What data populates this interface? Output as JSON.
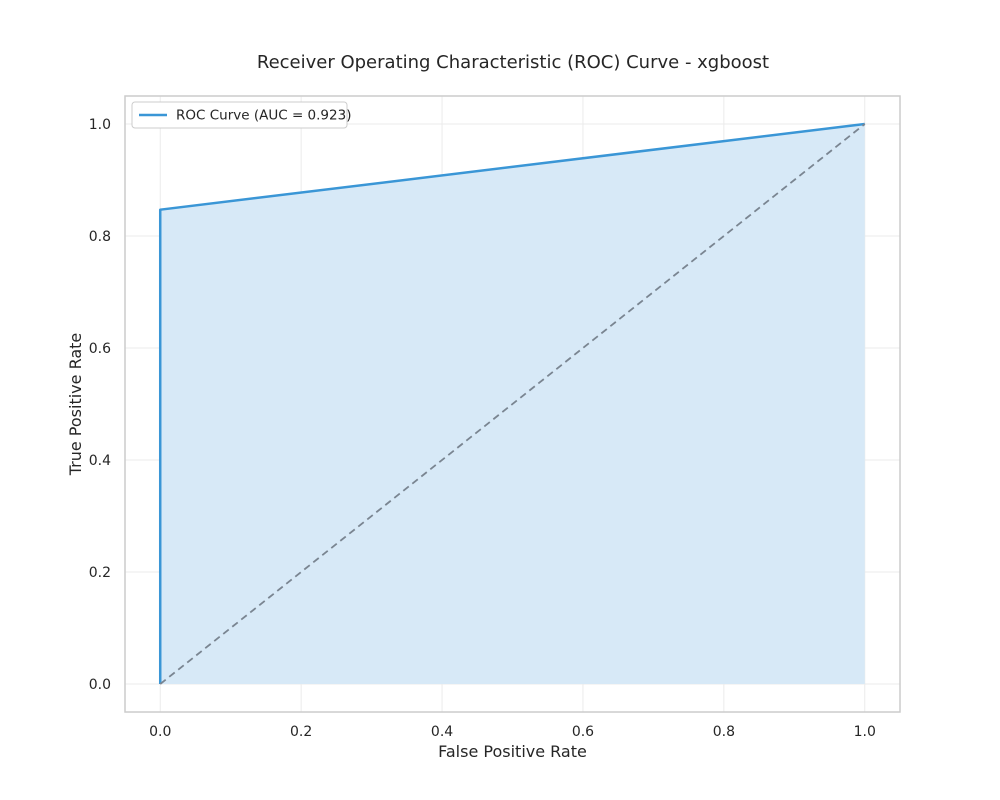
{
  "chart_data": {
    "type": "line",
    "title": "Receiver Operating Characteristic (ROC) Curve - xgboost",
    "xlabel": "False Positive Rate",
    "ylabel": "True Positive Rate",
    "xlim": [
      -0.05,
      1.05
    ],
    "ylim": [
      -0.05,
      1.05
    ],
    "xticks": [
      0.0,
      0.2,
      0.4,
      0.6,
      0.8,
      1.0
    ],
    "yticks": [
      0.0,
      0.2,
      0.4,
      0.6,
      0.8,
      1.0
    ],
    "xtick_labels": [
      "0.0",
      "0.2",
      "0.4",
      "0.6",
      "0.8",
      "1.0"
    ],
    "ytick_labels": [
      "0.0",
      "0.2",
      "0.4",
      "0.6",
      "0.8",
      "1.0"
    ],
    "grid": true,
    "legend_position": "top-left",
    "series": [
      {
        "name": "ROC Curve (AUC = 0.923)",
        "x": [
          0.0,
          0.0,
          1.0
        ],
        "y": [
          0.0,
          0.847,
          1.0
        ],
        "color": "#3a96d6",
        "fill_under": true,
        "fill_color": "#d7e9f7"
      },
      {
        "x": [
          0.0,
          1.0
        ],
        "y": [
          0.0,
          1.0
        ],
        "color": "#7a8591",
        "dashed": true
      }
    ]
  }
}
